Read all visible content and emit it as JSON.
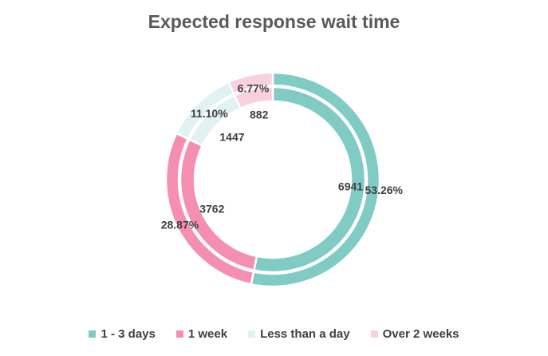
{
  "chart_data": {
    "type": "pie",
    "subtype": "nested-donut",
    "title": "Expected response wait time",
    "categories": [
      "1 - 3 days",
      "1 week",
      "Less than a day",
      "Over 2 weeks"
    ],
    "colors": [
      "#80CBC4",
      "#F48FB1",
      "#E0F2F1",
      "#F8D0DE"
    ],
    "series": [
      {
        "ring": "outer",
        "values": [
          53.26,
          28.87,
          11.1,
          6.77
        ],
        "labels": [
          "53.26%",
          "28.87%",
          "11.10%",
          "6.77%"
        ]
      },
      {
        "ring": "inner",
        "values": [
          6941,
          3762,
          1447,
          882
        ],
        "labels": [
          "6941",
          "3762",
          "1447",
          "882"
        ]
      }
    ],
    "legend_position": "bottom"
  }
}
